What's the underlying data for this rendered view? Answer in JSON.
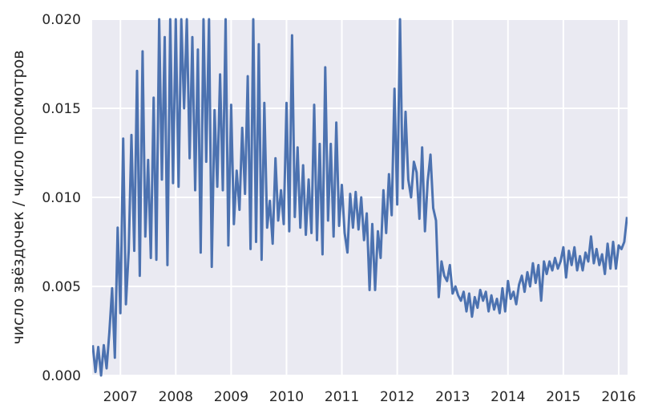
{
  "chart_data": {
    "type": "line",
    "title": "",
    "xlabel": "",
    "ylabel": "число звёздочек / число просмотров",
    "xlim": [
      2006.49,
      2016.16
    ],
    "ylim": [
      0.0,
      0.02
    ],
    "xticks": [
      2007,
      2008,
      2009,
      2010,
      2011,
      2012,
      2013,
      2014,
      2015,
      2016
    ],
    "xtick_labels": [
      "2007",
      "2008",
      "2009",
      "2010",
      "2011",
      "2012",
      "2013",
      "2014",
      "2015",
      "2016"
    ],
    "yticks": [
      0.0,
      0.005,
      0.01,
      0.015,
      0.02
    ],
    "ytick_labels": [
      "0.000",
      "0.005",
      "0.010",
      "0.015",
      "0.020"
    ],
    "grid": true,
    "background_color": "#EAEAF2",
    "line_color": "#4C72B0",
    "points": [
      [
        2006.5,
        0.0017
      ],
      [
        2006.55,
        0.0002
      ],
      [
        2006.6,
        0.0016
      ],
      [
        2006.65,
        0.0
      ],
      [
        2006.7,
        0.0017
      ],
      [
        2006.75,
        0.0004
      ],
      [
        2006.8,
        0.0024
      ],
      [
        2006.85,
        0.0049
      ],
      [
        2006.9,
        0.001
      ],
      [
        2006.95,
        0.0083
      ],
      [
        2007.0,
        0.0035
      ],
      [
        2007.05,
        0.0133
      ],
      [
        2007.1,
        0.004
      ],
      [
        2007.15,
        0.007
      ],
      [
        2007.2,
        0.0135
      ],
      [
        2007.25,
        0.007
      ],
      [
        2007.3,
        0.0171
      ],
      [
        2007.35,
        0.0056
      ],
      [
        2007.4,
        0.0182
      ],
      [
        2007.45,
        0.0078
      ],
      [
        2007.5,
        0.0121
      ],
      [
        2007.55,
        0.0066
      ],
      [
        2007.6,
        0.0156
      ],
      [
        2007.65,
        0.0065
      ],
      [
        2007.7,
        0.02
      ],
      [
        2007.75,
        0.011
      ],
      [
        2007.8,
        0.019
      ],
      [
        2007.85,
        0.0062
      ],
      [
        2007.9,
        0.02
      ],
      [
        2007.95,
        0.0108
      ],
      [
        2008.0,
        0.02
      ],
      [
        2008.05,
        0.0106
      ],
      [
        2008.1,
        0.02
      ],
      [
        2008.15,
        0.015
      ],
      [
        2008.2,
        0.02
      ],
      [
        2008.25,
        0.0122
      ],
      [
        2008.3,
        0.019
      ],
      [
        2008.35,
        0.0104
      ],
      [
        2008.4,
        0.0183
      ],
      [
        2008.45,
        0.0069
      ],
      [
        2008.5,
        0.02
      ],
      [
        2008.55,
        0.012
      ],
      [
        2008.6,
        0.02
      ],
      [
        2008.65,
        0.0061
      ],
      [
        2008.7,
        0.0149
      ],
      [
        2008.75,
        0.0106
      ],
      [
        2008.8,
        0.0169
      ],
      [
        2008.85,
        0.0104
      ],
      [
        2008.9,
        0.02
      ],
      [
        2008.95,
        0.0073
      ],
      [
        2009.0,
        0.0152
      ],
      [
        2009.05,
        0.0085
      ],
      [
        2009.1,
        0.0115
      ],
      [
        2009.15,
        0.0093
      ],
      [
        2009.2,
        0.0139
      ],
      [
        2009.25,
        0.0102
      ],
      [
        2009.3,
        0.0168
      ],
      [
        2009.35,
        0.0071
      ],
      [
        2009.4,
        0.02
      ],
      [
        2009.45,
        0.0075
      ],
      [
        2009.5,
        0.0186
      ],
      [
        2009.55,
        0.0065
      ],
      [
        2009.6,
        0.0153
      ],
      [
        2009.65,
        0.0083
      ],
      [
        2009.7,
        0.0098
      ],
      [
        2009.75,
        0.0074
      ],
      [
        2009.8,
        0.0122
      ],
      [
        2009.85,
        0.0087
      ],
      [
        2009.9,
        0.0104
      ],
      [
        2009.95,
        0.0085
      ],
      [
        2010.0,
        0.0153
      ],
      [
        2010.05,
        0.0081
      ],
      [
        2010.1,
        0.0191
      ],
      [
        2010.15,
        0.0089
      ],
      [
        2010.2,
        0.0128
      ],
      [
        2010.25,
        0.0083
      ],
      [
        2010.3,
        0.0118
      ],
      [
        2010.35,
        0.0079
      ],
      [
        2010.4,
        0.011
      ],
      [
        2010.45,
        0.008
      ],
      [
        2010.5,
        0.0152
      ],
      [
        2010.55,
        0.0076
      ],
      [
        2010.6,
        0.013
      ],
      [
        2010.65,
        0.0068
      ],
      [
        2010.7,
        0.0173
      ],
      [
        2010.75,
        0.0087
      ],
      [
        2010.8,
        0.013
      ],
      [
        2010.85,
        0.0078
      ],
      [
        2010.9,
        0.0142
      ],
      [
        2010.95,
        0.0084
      ],
      [
        2011.0,
        0.0107
      ],
      [
        2011.05,
        0.008
      ],
      [
        2011.1,
        0.0069
      ],
      [
        2011.15,
        0.0102
      ],
      [
        2011.2,
        0.0083
      ],
      [
        2011.25,
        0.0103
      ],
      [
        2011.3,
        0.0082
      ],
      [
        2011.35,
        0.01
      ],
      [
        2011.4,
        0.0076
      ],
      [
        2011.45,
        0.0091
      ],
      [
        2011.5,
        0.0048
      ],
      [
        2011.55,
        0.0085
      ],
      [
        2011.6,
        0.0048
      ],
      [
        2011.65,
        0.0081
      ],
      [
        2011.7,
        0.0066
      ],
      [
        2011.75,
        0.0104
      ],
      [
        2011.8,
        0.008
      ],
      [
        2011.85,
        0.0113
      ],
      [
        2011.9,
        0.009
      ],
      [
        2011.95,
        0.0161
      ],
      [
        2012.0,
        0.0096
      ],
      [
        2012.05,
        0.02
      ],
      [
        2012.1,
        0.0105
      ],
      [
        2012.15,
        0.0148
      ],
      [
        2012.2,
        0.011
      ],
      [
        2012.25,
        0.01
      ],
      [
        2012.3,
        0.012
      ],
      [
        2012.35,
        0.0114
      ],
      [
        2012.4,
        0.0088
      ],
      [
        2012.45,
        0.0128
      ],
      [
        2012.5,
        0.0081
      ],
      [
        2012.55,
        0.0109
      ],
      [
        2012.6,
        0.0124
      ],
      [
        2012.65,
        0.0094
      ],
      [
        2012.7,
        0.0087
      ],
      [
        2012.75,
        0.0044
      ],
      [
        2012.8,
        0.0064
      ],
      [
        2012.85,
        0.0056
      ],
      [
        2012.9,
        0.0053
      ],
      [
        2012.95,
        0.0062
      ],
      [
        2013.0,
        0.0046
      ],
      [
        2013.05,
        0.005
      ],
      [
        2013.1,
        0.0045
      ],
      [
        2013.15,
        0.0042
      ],
      [
        2013.2,
        0.0047
      ],
      [
        2013.25,
        0.0036
      ],
      [
        2013.3,
        0.0046
      ],
      [
        2013.35,
        0.0033
      ],
      [
        2013.4,
        0.0044
      ],
      [
        2013.45,
        0.0038
      ],
      [
        2013.5,
        0.0048
      ],
      [
        2013.55,
        0.0042
      ],
      [
        2013.6,
        0.0047
      ],
      [
        2013.65,
        0.0036
      ],
      [
        2013.7,
        0.0045
      ],
      [
        2013.75,
        0.0037
      ],
      [
        2013.8,
        0.0043
      ],
      [
        2013.85,
        0.0035
      ],
      [
        2013.9,
        0.0049
      ],
      [
        2013.95,
        0.0036
      ],
      [
        2014.0,
        0.0053
      ],
      [
        2014.05,
        0.0043
      ],
      [
        2014.1,
        0.0047
      ],
      [
        2014.15,
        0.004
      ],
      [
        2014.2,
        0.0051
      ],
      [
        2014.25,
        0.0056
      ],
      [
        2014.3,
        0.0047
      ],
      [
        2014.35,
        0.0058
      ],
      [
        2014.4,
        0.005
      ],
      [
        2014.45,
        0.0063
      ],
      [
        2014.5,
        0.0052
      ],
      [
        2014.55,
        0.0062
      ],
      [
        2014.6,
        0.0042
      ],
      [
        2014.65,
        0.0064
      ],
      [
        2014.7,
        0.0057
      ],
      [
        2014.75,
        0.0064
      ],
      [
        2014.8,
        0.0059
      ],
      [
        2014.85,
        0.0066
      ],
      [
        2014.9,
        0.006
      ],
      [
        2014.95,
        0.0064
      ],
      [
        2015.0,
        0.0072
      ],
      [
        2015.05,
        0.0055
      ],
      [
        2015.1,
        0.007
      ],
      [
        2015.15,
        0.0062
      ],
      [
        2015.2,
        0.0072
      ],
      [
        2015.25,
        0.0059
      ],
      [
        2015.3,
        0.0067
      ],
      [
        2015.35,
        0.0059
      ],
      [
        2015.4,
        0.0069
      ],
      [
        2015.45,
        0.0064
      ],
      [
        2015.5,
        0.0078
      ],
      [
        2015.55,
        0.0063
      ],
      [
        2015.6,
        0.0071
      ],
      [
        2015.65,
        0.0062
      ],
      [
        2015.7,
        0.0068
      ],
      [
        2015.75,
        0.0057
      ],
      [
        2015.8,
        0.0074
      ],
      [
        2015.85,
        0.006
      ],
      [
        2015.9,
        0.0075
      ],
      [
        2015.95,
        0.006
      ],
      [
        2016.0,
        0.0073
      ],
      [
        2016.05,
        0.0071
      ],
      [
        2016.1,
        0.0075
      ],
      [
        2016.15,
        0.0089
      ]
    ]
  }
}
